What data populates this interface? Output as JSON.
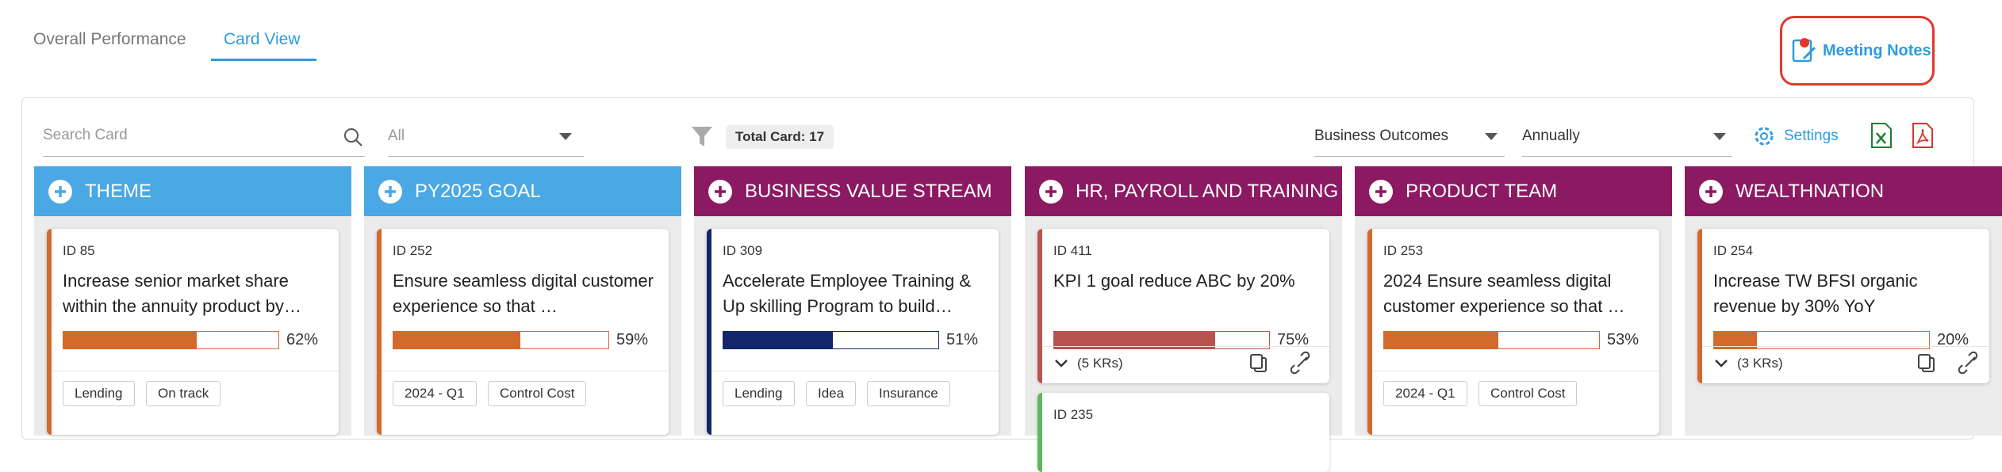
{
  "tabs": [
    "Overall Performance",
    "Card View"
  ],
  "meeting_notes": "Meeting Notes",
  "toolbar": {
    "search_placeholder": "Search Card",
    "filter_select": "All",
    "total_card": "Total Card: 17",
    "view_select": "Business Outcomes",
    "period_select": "Annually",
    "settings": "Settings"
  },
  "columns": [
    {
      "title": "THEME",
      "color": "#4aa8e4",
      "cards": [
        {
          "id": "ID 85",
          "title": "Increase senior market share within the annuity product by…",
          "progress": 62,
          "progress_label": "62%",
          "bar_color": "#d4692c",
          "border_color": "#d4692c",
          "tags": [
            "Lending",
            "On track"
          ]
        }
      ]
    },
    {
      "title": "PY2025 GOAL",
      "color": "#4aa8e4",
      "cards": [
        {
          "id": "ID 252",
          "title": "Ensure seamless digital customer experience so that …",
          "progress": 59,
          "progress_label": "59%",
          "bar_color": "#d4692c",
          "border_color": "#d4692c",
          "tags": [
            "2024 - Q1",
            "Control Cost"
          ]
        }
      ]
    },
    {
      "title": "BUSINESS VALUE STREAM",
      "color": "#8b1a62",
      "cards": [
        {
          "id": "ID 309",
          "title": "Accelerate Employee Training & Up skilling Program to build…",
          "progress": 51,
          "progress_label": "51%",
          "bar_color": "#13266b",
          "border_color": "#13266b",
          "tags": [
            "Lending",
            "Idea",
            "Insurance"
          ]
        }
      ]
    },
    {
      "title": "HR, PAYROLL AND TRAINING",
      "color": "#8b1a62",
      "cards": [
        {
          "id": "ID 411",
          "title": "KPI 1 goal reduce ABC by 20%",
          "progress": 75,
          "progress_label": "75%",
          "bar_color": "#b85450",
          "border_color": "#b85450",
          "krs": "(5 KRs)"
        },
        {
          "id": "ID 235",
          "border_color": "#5cb85c"
        }
      ]
    },
    {
      "title": "PRODUCT TEAM",
      "color": "#8b1a62",
      "cards": [
        {
          "id": "ID 253",
          "title": "2024 Ensure seamless digital customer experience so that …",
          "progress": 53,
          "progress_label": "53%",
          "bar_color": "#d4692c",
          "border_color": "#d4692c",
          "tags": [
            "2024 - Q1",
            "Control Cost"
          ]
        }
      ]
    },
    {
      "title": "WEALTHNATION",
      "color": "#8b1a62",
      "cards": [
        {
          "id": "ID 254",
          "title": "Increase TW BFSI organic revenue by 30% YoY",
          "progress": 20,
          "progress_label": "20%",
          "bar_color": "#d4692c",
          "border_color": "#d4692c",
          "krs": "(3 KRs)"
        }
      ]
    }
  ]
}
